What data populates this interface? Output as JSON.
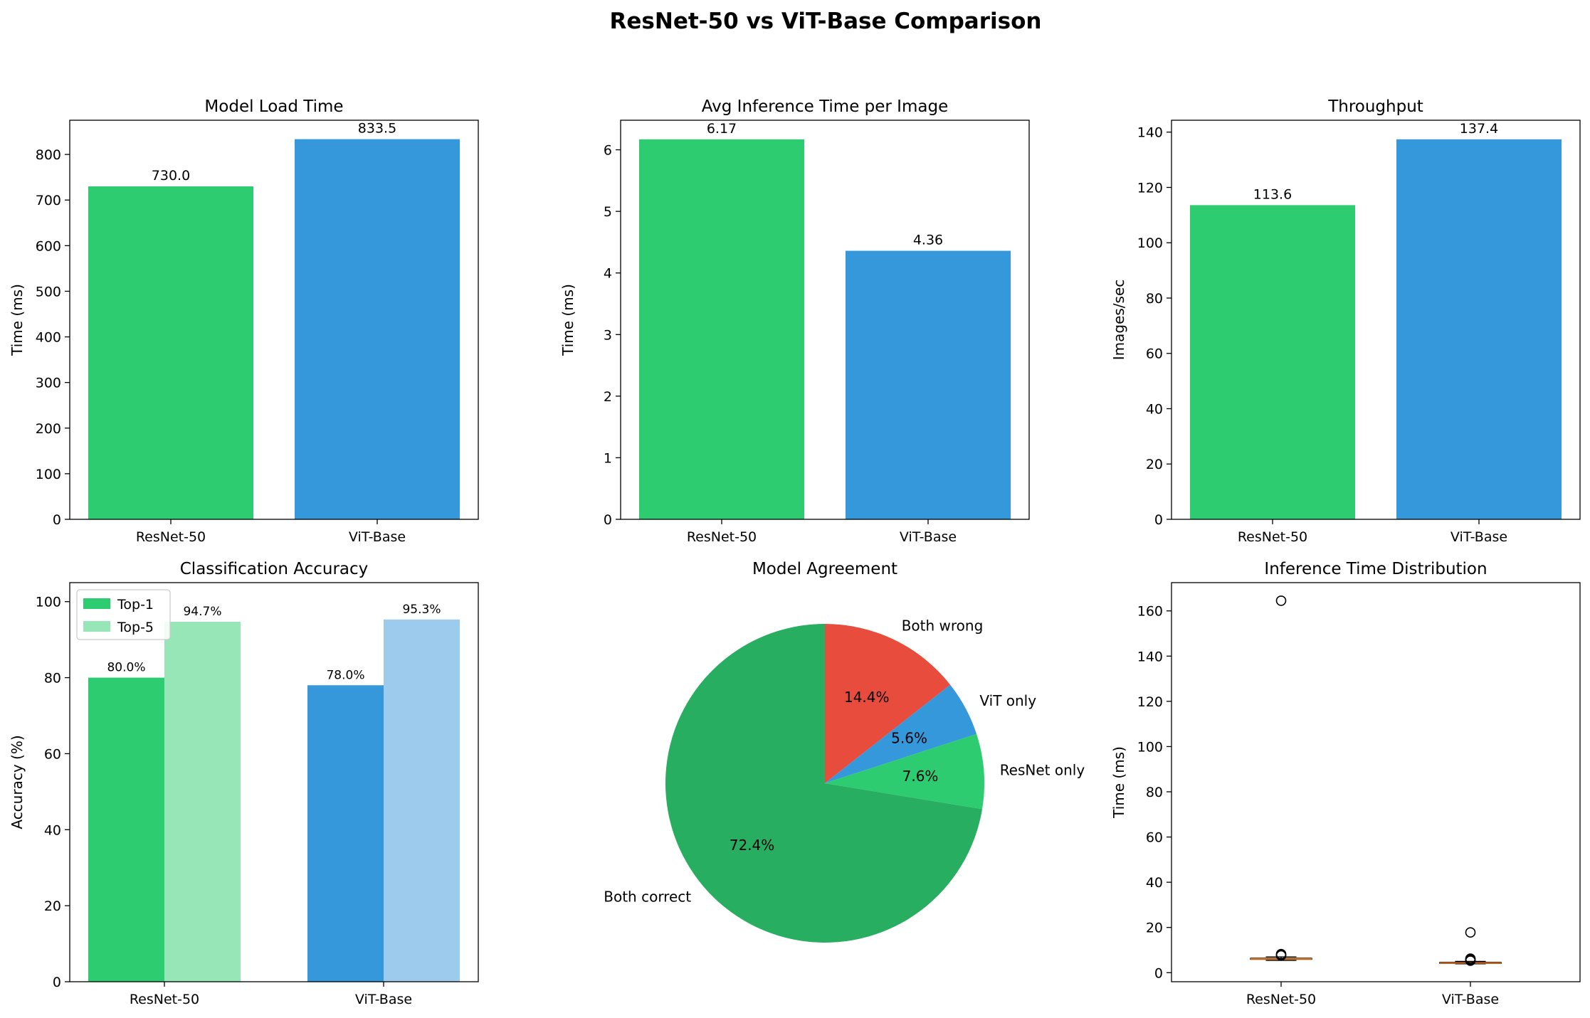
{
  "figure_title": "ResNet-50 vs ViT-Base Comparison",
  "colors": {
    "resnet": "#2ecc71",
    "vit": "#3498db",
    "resnet_light": "#97e6b7",
    "vit_light": "#9ccbed",
    "both_correct": "#27ae60",
    "both_wrong": "#e74c3c",
    "median": "#ff7f0e"
  },
  "chart_data": [
    {
      "id": "load",
      "type": "bar",
      "title": "Model Load Time",
      "ylabel": "Time (ms)",
      "categories": [
        "ResNet-50",
        "ViT-Base"
      ],
      "values": [
        730.0,
        833.5
      ],
      "value_labels": [
        "730.0",
        "833.5"
      ],
      "ylim": [
        0,
        875
      ],
      "yticks": [
        0,
        100,
        200,
        300,
        400,
        500,
        600,
        700,
        800
      ],
      "grid": false
    },
    {
      "id": "infer",
      "type": "bar",
      "title": "Avg Inference Time per Image",
      "ylabel": "Time (ms)",
      "categories": [
        "ResNet-50",
        "ViT-Base"
      ],
      "values": [
        6.17,
        4.36
      ],
      "value_labels": [
        "6.17",
        "4.36"
      ],
      "ylim": [
        0,
        6.48
      ],
      "yticks": [
        0,
        1,
        2,
        3,
        4,
        5,
        6
      ],
      "grid": false
    },
    {
      "id": "throughput",
      "type": "bar",
      "title": "Throughput",
      "ylabel": "Images/sec",
      "categories": [
        "ResNet-50",
        "ViT-Base"
      ],
      "values": [
        113.6,
        137.4
      ],
      "value_labels": [
        "113.6",
        "137.4"
      ],
      "ylim": [
        0,
        144.3
      ],
      "yticks": [
        0,
        20,
        40,
        60,
        80,
        100,
        120,
        140
      ],
      "grid": false
    },
    {
      "id": "accuracy",
      "type": "bar",
      "title": "Classification Accuracy",
      "ylabel": "Accuracy (%)",
      "categories": [
        "ResNet-50",
        "ViT-Base"
      ],
      "series": [
        {
          "name": "Top-1",
          "values": [
            80.0,
            78.0
          ],
          "value_labels": [
            "80.0%",
            "78.0%"
          ]
        },
        {
          "name": "Top-5",
          "values": [
            94.7,
            95.3
          ],
          "value_labels": [
            "94.7%",
            "95.3%"
          ]
        }
      ],
      "ylim": [
        0,
        105
      ],
      "yticks": [
        0,
        20,
        40,
        60,
        80,
        100
      ],
      "legend": "top-left",
      "grid": false
    },
    {
      "id": "agreement",
      "type": "pie",
      "title": "Model Agreement",
      "slices": [
        {
          "label": "Both wrong",
          "value": 14.4,
          "pct": "14.4%"
        },
        {
          "label": "ViT only",
          "value": 5.6,
          "pct": "5.6%"
        },
        {
          "label": "ResNet only",
          "value": 7.6,
          "pct": "7.6%"
        },
        {
          "label": "Both correct",
          "value": 72.4,
          "pct": "72.4%"
        }
      ],
      "start_angle": 90,
      "direction": "clockwise"
    },
    {
      "id": "distribution",
      "type": "box",
      "title": "Inference Time Distribution",
      "ylabel": "Time (ms)",
      "categories": [
        "ResNet-50",
        "ViT-Base"
      ],
      "boxes": [
        {
          "q1": 5.9,
          "median": 6.1,
          "q3": 6.4,
          "whisker_low": 5.4,
          "whisker_high": 7.0,
          "outliers": [
            164.5,
            7.6,
            7.9,
            8.2
          ]
        },
        {
          "q1": 4.1,
          "median": 4.3,
          "q3": 4.6,
          "whisker_low": 3.9,
          "whisker_high": 5.0,
          "outliers": [
            17.8,
            5.3,
            5.6,
            5.9,
            6.2
          ]
        }
      ],
      "ylim": [
        -4,
        172.5
      ],
      "yticks": [
        0,
        20,
        40,
        60,
        80,
        100,
        120,
        140,
        160
      ],
      "grid": false
    }
  ]
}
